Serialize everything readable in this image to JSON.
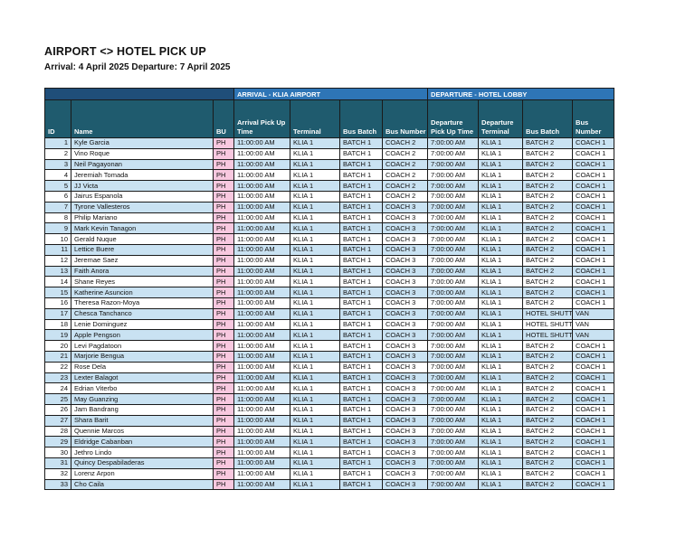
{
  "page": {
    "title": "AIRPORT <> HOTEL PICK UP",
    "subtitle": "Arrival: 4 April 2025 Departure: 7 April 2025"
  },
  "colors": {
    "navy_band": "#1F4E79",
    "blue_band": "#2E75B6",
    "header_teal": "#1F5B6E",
    "row_stripe": "#C9E2F2",
    "bu_pink": "#F8C8DF",
    "row_white": "#FFFFFF"
  },
  "table": {
    "group_headers": {
      "blank": "",
      "arrival": "ARRIVAL - KLIA AIRPORT",
      "departure": "DEPARTURE - HOTEL LOBBY"
    },
    "columns": [
      "ID",
      "Name",
      "BU",
      "Arrival Pick Up Time",
      "Terminal",
      "Bus Batch",
      "Bus Number",
      "Departure Pick Up Time",
      "Departure Terminal",
      "Bus Batch",
      "Bus Number"
    ],
    "rows": [
      [
        1,
        "Kyle Garcia",
        "PH",
        "11:00:00 AM",
        "KLIA 1",
        "BATCH 1",
        "COACH 2",
        "7:00:00 AM",
        "KLIA 1",
        "BATCH 2",
        "COACH 1"
      ],
      [
        2,
        "Vino Roque",
        "PH",
        "11:00:00 AM",
        "KLIA 1",
        "BATCH 1",
        "COACH 2",
        "7:00:00 AM",
        "KLIA 1",
        "BATCH 2",
        "COACH 1"
      ],
      [
        3,
        "Neil Pagayonan",
        "PH",
        "11:00:00 AM",
        "KLIA 1",
        "BATCH 1",
        "COACH 2",
        "7:00:00 AM",
        "KLIA 1",
        "BATCH 2",
        "COACH 1"
      ],
      [
        4,
        "Jeremiah Tomada",
        "PH",
        "11:00:00 AM",
        "KLIA 1",
        "BATCH 1",
        "COACH 2",
        "7:00:00 AM",
        "KLIA 1",
        "BATCH 2",
        "COACH 1"
      ],
      [
        5,
        "JJ Victa",
        "PH",
        "11:00:00 AM",
        "KLIA 1",
        "BATCH 1",
        "COACH 2",
        "7:00:00 AM",
        "KLIA 1",
        "BATCH 2",
        "COACH 1"
      ],
      [
        6,
        "Jairus Espanola",
        "PH",
        "11:00:00 AM",
        "KLIA 1",
        "BATCH 1",
        "COACH 2",
        "7:00:00 AM",
        "KLIA 1",
        "BATCH 2",
        "COACH 1"
      ],
      [
        7,
        "Tyrone Vallesteros",
        "PH",
        "11:00:00 AM",
        "KLIA 1",
        "BATCH 1",
        "COACH 3",
        "7:00:00 AM",
        "KLIA 1",
        "BATCH 2",
        "COACH 1"
      ],
      [
        8,
        "Philip Mariano",
        "PH",
        "11:00:00 AM",
        "KLIA 1",
        "BATCH 1",
        "COACH 3",
        "7:00:00 AM",
        "KLIA 1",
        "BATCH 2",
        "COACH 1"
      ],
      [
        9,
        "Mark Kevin Tanagon",
        "PH",
        "11:00:00 AM",
        "KLIA 1",
        "BATCH 1",
        "COACH 3",
        "7:00:00 AM",
        "KLIA 1",
        "BATCH 2",
        "COACH 1"
      ],
      [
        10,
        "Gerald Nuque",
        "PH",
        "11:00:00 AM",
        "KLIA 1",
        "BATCH 1",
        "COACH 3",
        "7:00:00 AM",
        "KLIA 1",
        "BATCH 2",
        "COACH 1"
      ],
      [
        11,
        "Lettice Buere",
        "PH",
        "11:00:00 AM",
        "KLIA 1",
        "BATCH 1",
        "COACH 3",
        "7:00:00 AM",
        "KLIA 1",
        "BATCH 2",
        "COACH 1"
      ],
      [
        12,
        "Jeremae Saez",
        "PH",
        "11:00:00 AM",
        "KLIA 1",
        "BATCH 1",
        "COACH 3",
        "7:00:00 AM",
        "KLIA 1",
        "BATCH 2",
        "COACH 1"
      ],
      [
        13,
        "Faith Anora",
        "PH",
        "11:00:00 AM",
        "KLIA 1",
        "BATCH 1",
        "COACH 3",
        "7:00:00 AM",
        "KLIA 1",
        "BATCH 2",
        "COACH 1"
      ],
      [
        14,
        "Shane Reyes",
        "PH",
        "11:00:00 AM",
        "KLIA 1",
        "BATCH 1",
        "COACH 3",
        "7:00:00 AM",
        "KLIA 1",
        "BATCH 2",
        "COACH 1"
      ],
      [
        15,
        "Katherine Asuncion",
        "PH",
        "11:00:00 AM",
        "KLIA 1",
        "BATCH 1",
        "COACH 3",
        "7:00:00 AM",
        "KLIA 1",
        "BATCH 2",
        "COACH 1"
      ],
      [
        16,
        "Theresa Razon-Moya",
        "PH",
        "11:00:00 AM",
        "KLIA 1",
        "BATCH 1",
        "COACH 3",
        "7:00:00 AM",
        "KLIA 1",
        "BATCH 2",
        "COACH 1"
      ],
      [
        17,
        "Chesca Tanchanco",
        "PH",
        "11:00:00 AM",
        "KLIA 1",
        "BATCH 1",
        "COACH 3",
        "7:00:00 AM",
        "KLIA 1",
        "HOTEL SHUTTLE",
        "VAN"
      ],
      [
        18,
        "Lenie Dominguez",
        "PH",
        "11:00:00 AM",
        "KLIA 1",
        "BATCH 1",
        "COACH 3",
        "7:00:00 AM",
        "KLIA 1",
        "HOTEL SHUTTLE",
        "VAN"
      ],
      [
        19,
        "Apple Pengson",
        "PH",
        "11:00:00 AM",
        "KLIA 1",
        "BATCH 1",
        "COACH 3",
        "7:00:00 AM",
        "KLIA 1",
        "HOTEL SHUTTLE",
        "VAN"
      ],
      [
        20,
        "Levi Pagdatoon",
        "PH",
        "11:00:00 AM",
        "KLIA 1",
        "BATCH 1",
        "COACH 3",
        "7:00:00 AM",
        "KLIA 1",
        "BATCH 2",
        "COACH 1"
      ],
      [
        21,
        "Marjorie Bengua",
        "PH",
        "11:00:00 AM",
        "KLIA 1",
        "BATCH 1",
        "COACH 3",
        "7:00:00 AM",
        "KLIA 1",
        "BATCH 2",
        "COACH 1"
      ],
      [
        22,
        "Rose Dela",
        "PH",
        "11:00:00 AM",
        "KLIA 1",
        "BATCH 1",
        "COACH 3",
        "7:00:00 AM",
        "KLIA 1",
        "BATCH 2",
        "COACH 1"
      ],
      [
        23,
        "Lexter Balagot",
        "PH",
        "11:00:00 AM",
        "KLIA 1",
        "BATCH 1",
        "COACH 3",
        "7:00:00 AM",
        "KLIA 1",
        "BATCH 2",
        "COACH 1"
      ],
      [
        24,
        "Edrian Viterbo",
        "PH",
        "11:00:00 AM",
        "KLIA 1",
        "BATCH 1",
        "COACH 3",
        "7:00:00 AM",
        "KLIA 1",
        "BATCH 2",
        "COACH 1"
      ],
      [
        25,
        "May Guanzing",
        "PH",
        "11:00:00 AM",
        "KLIA 1",
        "BATCH 1",
        "COACH 3",
        "7:00:00 AM",
        "KLIA 1",
        "BATCH 2",
        "COACH 1"
      ],
      [
        26,
        "Jam Bandrang",
        "PH",
        "11:00:00 AM",
        "KLIA 1",
        "BATCH 1",
        "COACH 3",
        "7:00:00 AM",
        "KLIA 1",
        "BATCH 2",
        "COACH 1"
      ],
      [
        27,
        "Shara Barit",
        "PH",
        "11:00:00 AM",
        "KLIA 1",
        "BATCH 1",
        "COACH 3",
        "7:00:00 AM",
        "KLIA 1",
        "BATCH 2",
        "COACH 1"
      ],
      [
        28,
        "Quennie Marcos",
        "PH",
        "11:00:00 AM",
        "KLIA 1",
        "BATCH 1",
        "COACH 3",
        "7:00:00 AM",
        "KLIA 1",
        "BATCH 2",
        "COACH 1"
      ],
      [
        29,
        "Eldridge Cabanban",
        "PH",
        "11:00:00 AM",
        "KLIA 1",
        "BATCH 1",
        "COACH 3",
        "7:00:00 AM",
        "KLIA 1",
        "BATCH 2",
        "COACH 1"
      ],
      [
        30,
        "Jethro Lindo",
        "PH",
        "11:00:00 AM",
        "KLIA 1",
        "BATCH 1",
        "COACH 3",
        "7:00:00 AM",
        "KLIA 1",
        "BATCH 2",
        "COACH 1"
      ],
      [
        31,
        "Quincy Despabiladeras",
        "PH",
        "11:00:00 AM",
        "KLIA 1",
        "BATCH 1",
        "COACH 3",
        "7:00:00 AM",
        "KLIA 1",
        "BATCH 2",
        "COACH 1"
      ],
      [
        32,
        "Lorenz Arpon",
        "PH",
        "11:00:00 AM",
        "KLIA 1",
        "BATCH 1",
        "COACH 3",
        "7:00:00 AM",
        "KLIA 1",
        "BATCH 2",
        "COACH 1"
      ],
      [
        33,
        "Cho Caila",
        "PH",
        "11:00:00 AM",
        "KLIA 1",
        "BATCH 1",
        "COACH 3",
        "7:00:00 AM",
        "KLIA 1",
        "BATCH 2",
        "COACH 1"
      ]
    ]
  }
}
